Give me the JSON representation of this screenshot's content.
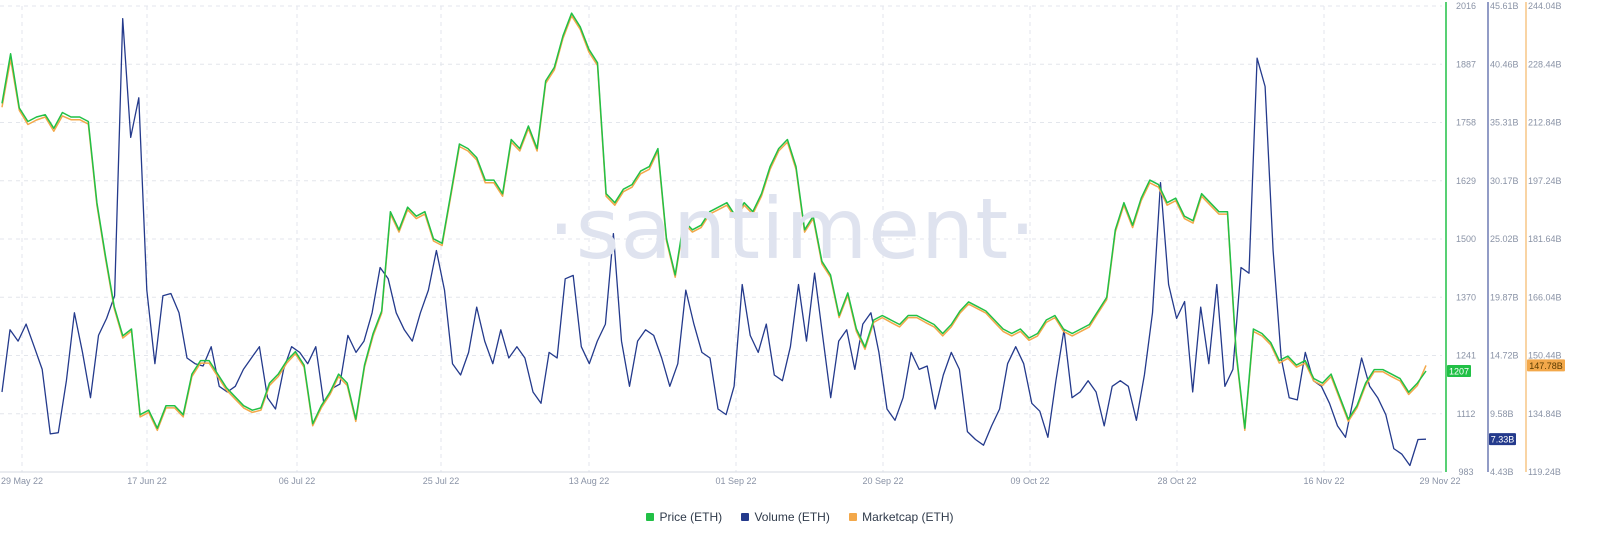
{
  "watermark": "·santiment·",
  "colors": {
    "price": "#21c046",
    "volume": "#243a8c",
    "marketcap": "#f3a84a",
    "grid": "#e3e6ec",
    "axis_text": "#8a93a6"
  },
  "chart_data": {
    "type": "line",
    "x_tick_labels": [
      "29 May 22",
      "17 Jun 22",
      "06 Jul 22",
      "25 Jul 22",
      "13 Aug 22",
      "01 Sep 22",
      "20 Sep 22",
      "09 Oct 22",
      "28 Oct 22",
      "16 Nov 22",
      "29 Nov 22"
    ],
    "y_axes": {
      "price": {
        "ticks": [
          "2016",
          "1887",
          "1758",
          "1629",
          "1500",
          "1370",
          "1241",
          "1112",
          "983"
        ],
        "range": [
          983,
          2016
        ],
        "current_label": "1207"
      },
      "volume": {
        "ticks": [
          "45.61B",
          "40.46B",
          "35.31B",
          "30.17B",
          "25.02B",
          "19.87B",
          "14.72B",
          "9.58B",
          "4.43B"
        ],
        "range_billions": [
          4.43,
          45.61
        ],
        "current_label": "7.33B"
      },
      "marketcap": {
        "ticks": [
          "244.04B",
          "228.44B",
          "212.84B",
          "197.24B",
          "181.64B",
          "166.04B",
          "150.44B",
          "134.84B",
          "119.24B"
        ],
        "range_billions": [
          119.24,
          244.04
        ],
        "current_label": "147.78B"
      }
    },
    "grid": true,
    "legend_position": "bottom-center",
    "series": [
      {
        "name": "Price (ETH)",
        "key": "price",
        "unit": "USD",
        "values": [
          1800,
          1910,
          1790,
          1760,
          1770,
          1775,
          1745,
          1780,
          1770,
          1770,
          1760,
          1580,
          1460,
          1350,
          1285,
          1300,
          1110,
          1120,
          1080,
          1130,
          1130,
          1110,
          1200,
          1230,
          1230,
          1200,
          1170,
          1150,
          1130,
          1120,
          1125,
          1180,
          1200,
          1230,
          1250,
          1220,
          1090,
          1130,
          1160,
          1200,
          1180,
          1100,
          1220,
          1290,
          1340,
          1560,
          1520,
          1570,
          1550,
          1560,
          1500,
          1490,
          1600,
          1710,
          1700,
          1680,
          1630,
          1630,
          1600,
          1720,
          1700,
          1750,
          1700,
          1850,
          1880,
          1950,
          2000,
          1970,
          1920,
          1890,
          1600,
          1580,
          1610,
          1620,
          1650,
          1660,
          1700,
          1500,
          1420,
          1540,
          1520,
          1530,
          1560,
          1570,
          1580,
          1550,
          1580,
          1560,
          1600,
          1660,
          1700,
          1720,
          1660,
          1520,
          1550,
          1450,
          1420,
          1330,
          1380,
          1300,
          1260,
          1320,
          1330,
          1320,
          1310,
          1330,
          1330,
          1320,
          1310,
          1290,
          1310,
          1340,
          1360,
          1350,
          1340,
          1320,
          1300,
          1290,
          1300,
          1280,
          1290,
          1320,
          1330,
          1300,
          1290,
          1300,
          1310,
          1340,
          1370,
          1520,
          1580,
          1530,
          1590,
          1630,
          1620,
          1580,
          1590,
          1550,
          1540,
          1600,
          1580,
          1560,
          1560,
          1250,
          1080,
          1300,
          1290,
          1270,
          1230,
          1240,
          1220,
          1230,
          1190,
          1180,
          1200,
          1150,
          1100,
          1130,
          1180,
          1210,
          1210,
          1200,
          1190,
          1160,
          1180,
          1207
        ],
        "approx": true
      },
      {
        "name": "Volume (ETH)",
        "key": "volume",
        "unit": "billions",
        "values": [
          11.5,
          17.0,
          16.0,
          17.5,
          15.5,
          13.5,
          7.8,
          7.9,
          12.5,
          18.5,
          15.0,
          11.0,
          16.5,
          18.0,
          20.0,
          44.5,
          34.0,
          37.5,
          20.5,
          14.0,
          20.0,
          20.2,
          18.5,
          14.5,
          14.0,
          13.8,
          15.5,
          12.0,
          11.5,
          12.0,
          13.5,
          14.5,
          15.5,
          11.0,
          10.0,
          13.5,
          15.5,
          15.0,
          14.0,
          15.5,
          10.5,
          11.8,
          12.2,
          16.5,
          15.0,
          16.0,
          18.5,
          22.5,
          21.5,
          18.5,
          17.0,
          16.0,
          18.5,
          20.5,
          24.0,
          20.5,
          14.0,
          13.0,
          15.0,
          19.0,
          16.0,
          14.0,
          17.0,
          14.5,
          15.5,
          14.5,
          11.5,
          10.5,
          15.0,
          14.5,
          21.5,
          21.8,
          15.5,
          14.0,
          16.0,
          17.5,
          25.5,
          16.0,
          12.0,
          16.0,
          17.0,
          16.5,
          14.5,
          12.0,
          14.0,
          20.5,
          17.5,
          15.0,
          14.5,
          10.0,
          9.5,
          12.0,
          21.0,
          16.5,
          15.0,
          17.5,
          13.0,
          12.5,
          15.5,
          21.0,
          16.0,
          22.0,
          16.5,
          11.0,
          16.0,
          17.0,
          13.5,
          17.5,
          18.5,
          15.0,
          10.0,
          9.0,
          11.0,
          15.0,
          13.5,
          13.8,
          10.0,
          13.0,
          15.0,
          13.5,
          8.0,
          7.3,
          6.8,
          8.5,
          10.0,
          14.0,
          15.5,
          14.0,
          10.5,
          9.8,
          7.5,
          12.5,
          17.0,
          11.0,
          11.5,
          12.5,
          11.5,
          8.5,
          12.0,
          12.5,
          12.0,
          9.0,
          13.0,
          18.5,
          30.0,
          21.0,
          18.0,
          19.5,
          11.5,
          19.0,
          14.0,
          21.0,
          12.0,
          13.5,
          22.5,
          22.0,
          41.0,
          38.5,
          24.0,
          14.5,
          11.0,
          10.8,
          15.0,
          12.5,
          12.0,
          10.5,
          8.5,
          7.5,
          11.0,
          14.5,
          12.0,
          11.0,
          9.5,
          6.5,
          6.0,
          5.0,
          7.3,
          7.33
        ],
        "approx": true
      },
      {
        "name": "Marketcap (ETH)",
        "key": "marketcap",
        "unit": "billions",
        "values": [
          216.9,
          229.8,
          216.1,
          212.3,
          213.5,
          214.3,
          210.5,
          214.6,
          213.6,
          213.6,
          212.4,
          190.7,
          176.2,
          163.0,
          155.1,
          157.0,
          134.0,
          135.2,
          130.4,
          136.4,
          136.4,
          134.0,
          144.8,
          148.4,
          148.4,
          144.8,
          141.2,
          138.8,
          136.4,
          135.2,
          135.8,
          142.4,
          144.8,
          148.4,
          150.9,
          147.3,
          131.6,
          136.4,
          140.0,
          144.8,
          142.4,
          132.8,
          147.3,
          155.7,
          161.8,
          188.3,
          183.5,
          189.5,
          187.1,
          188.3,
          181.1,
          179.9,
          193.1,
          206.4,
          205.2,
          202.8,
          196.7,
          196.7,
          193.1,
          207.6,
          205.2,
          211.2,
          205.2,
          223.3,
          226.9,
          235.4,
          241.4,
          237.8,
          231.7,
          228.1,
          193.1,
          190.7,
          194.3,
          195.5,
          199.1,
          200.3,
          205.2,
          181.1,
          171.4,
          185.9,
          183.5,
          184.7,
          188.3,
          189.5,
          190.7,
          187.1,
          190.7,
          188.3,
          193.1,
          200.3,
          205.2,
          207.6,
          200.3,
          183.5,
          187.1,
          175.0,
          171.4,
          160.6,
          166.6,
          156.9,
          152.1,
          159.3,
          160.6,
          159.3,
          158.1,
          160.6,
          160.6,
          159.3,
          158.1,
          155.7,
          158.1,
          161.8,
          164.2,
          163.0,
          161.8,
          159.3,
          156.9,
          155.7,
          156.9,
          154.5,
          155.7,
          159.3,
          160.6,
          156.9,
          155.7,
          156.9,
          158.1,
          161.8,
          165.4,
          183.5,
          190.7,
          184.7,
          191.9,
          196.7,
          195.5,
          190.7,
          191.9,
          187.1,
          185.9,
          193.1,
          190.7,
          188.3,
          188.3,
          150.9,
          130.4,
          156.9,
          155.7,
          153.3,
          148.4,
          149.7,
          147.3,
          148.4,
          143.6,
          142.4,
          144.8,
          138.8,
          132.8,
          136.4,
          142.4,
          146.1,
          146.1,
          144.8,
          143.6,
          140.0,
          142.4,
          147.78
        ],
        "approx": true
      }
    ]
  }
}
